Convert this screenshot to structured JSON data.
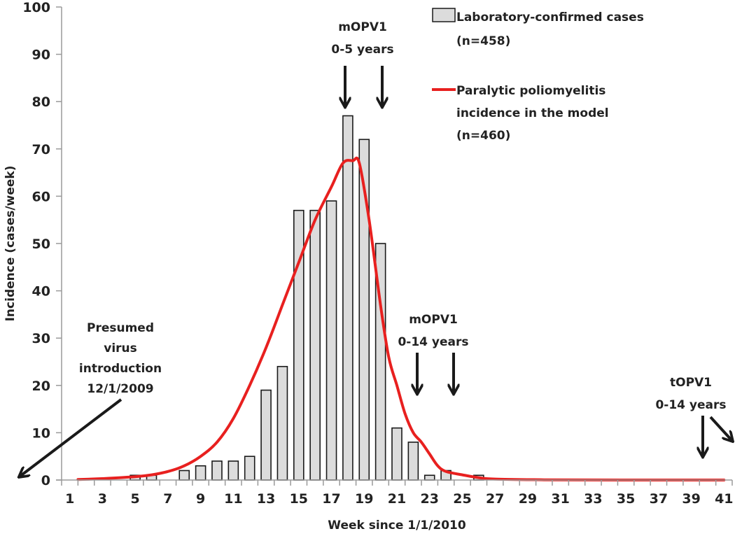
{
  "chart_data": {
    "type": "bar",
    "title": "",
    "xlabel": "Week since 1/1/2010",
    "ylabel": "Incidence (cases/week)",
    "ylim": [
      0,
      100
    ],
    "yticks": [
      0,
      10,
      20,
      30,
      40,
      50,
      60,
      70,
      80,
      90,
      100
    ],
    "xlim": [
      1,
      41
    ],
    "xtick_labels": [
      "1",
      "3",
      "5",
      "7",
      "9",
      "11",
      "13",
      "15",
      "17",
      "19",
      "21",
      "23",
      "25",
      "27",
      "29",
      "31",
      "33",
      "35",
      "37",
      "39",
      "41"
    ],
    "grid": false,
    "legend_position": "top-right",
    "series": [
      {
        "name": "Laboratory-confirmed cases",
        "name_line2": "(n=458)",
        "kind": "bar",
        "color": "#dcdcdc",
        "edge_color": "#1a1a1a",
        "x": [
          5,
          6,
          8,
          9,
          10,
          11,
          12,
          13,
          14,
          15,
          16,
          17,
          18,
          19,
          20,
          21,
          22,
          23,
          24,
          26
        ],
        "values": [
          1,
          1,
          2,
          3,
          4,
          4,
          5,
          19,
          24,
          57,
          57,
          59,
          77,
          72,
          50,
          11,
          8,
          1,
          2,
          1
        ]
      },
      {
        "name": "Paralytic poliomyelitis",
        "name_line2": "incidence in the model",
        "name_line3": "(n=460)",
        "kind": "line",
        "color": "#e8201f",
        "x": [
          1.5,
          3,
          5,
          6,
          7,
          8,
          9,
          10,
          11,
          12,
          13,
          14,
          15,
          16,
          17,
          17.7,
          18.3,
          18.7,
          19.3,
          20,
          20.5,
          21,
          21.5,
          22,
          22.5,
          23,
          23.5,
          24,
          25,
          26,
          27,
          30,
          35,
          41
        ],
        "values": [
          0.1,
          0.3,
          0.7,
          1.1,
          1.8,
          3,
          5,
          8,
          13,
          20,
          28,
          37,
          46,
          55,
          62,
          67,
          67.5,
          67,
          55,
          37,
          26,
          20,
          14,
          10,
          8,
          5.5,
          3,
          1.8,
          1.1,
          0.5,
          0.2,
          0.05,
          0,
          0
        ]
      }
    ],
    "annotations": [
      {
        "id": "mopv1-0-5",
        "lines": [
          "mOPV1",
          "0-5 years"
        ],
        "arrow_weeks": [
          18,
          20
        ]
      },
      {
        "id": "mopv1-0-14",
        "lines": [
          "mOPV1",
          "0-14 years"
        ],
        "arrow_weeks": [
          22,
          24
        ]
      },
      {
        "id": "topv1-0-14",
        "lines": [
          "tOPV1",
          "0-14 years"
        ],
        "arrow_weeks": [
          40,
          "off-chart-right"
        ]
      },
      {
        "id": "virus-intro",
        "lines": [
          "Presumed",
          "virus",
          "introduction",
          "12/1/2009"
        ],
        "arrow_points_to": "off-chart-left"
      }
    ]
  }
}
